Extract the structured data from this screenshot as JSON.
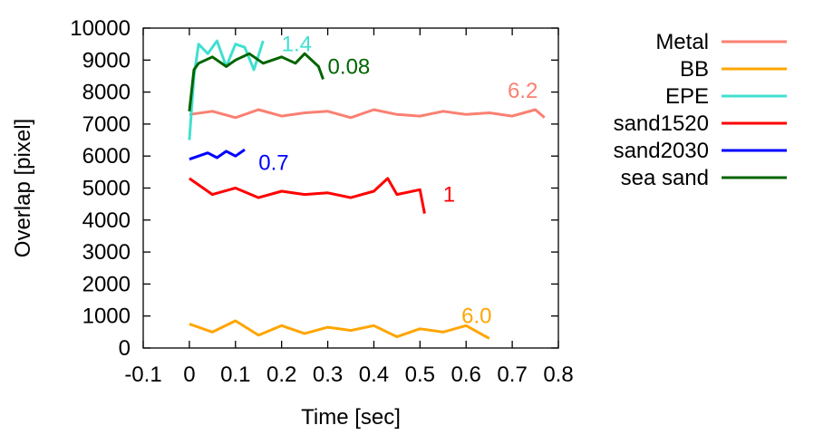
{
  "chart_data": {
    "type": "line",
    "xlabel": "Time [sec]",
    "ylabel": "Overlap [pixel]",
    "xlim": [
      -0.1,
      0.8
    ],
    "ylim": [
      0,
      10000
    ],
    "x_ticks": [
      "-0.1",
      "0",
      "0.1",
      "0.2",
      "0.3",
      "0.4",
      "0.5",
      "0.6",
      "0.7",
      "0.8"
    ],
    "y_ticks": [
      "0",
      "1000",
      "2000",
      "3000",
      "4000",
      "5000",
      "6000",
      "7000",
      "8000",
      "9000",
      "10000"
    ],
    "grid": false,
    "legend_position": "outside-right",
    "series": [
      {
        "name": "Metal",
        "color": "#fa8072",
        "x": [
          0,
          0.05,
          0.1,
          0.15,
          0.2,
          0.25,
          0.3,
          0.35,
          0.4,
          0.45,
          0.5,
          0.55,
          0.6,
          0.65,
          0.7,
          0.75,
          0.77
        ],
        "y": [
          7300,
          7400,
          7200,
          7450,
          7250,
          7350,
          7400,
          7200,
          7450,
          7300,
          7250,
          7400,
          7300,
          7350,
          7250,
          7450,
          7200
        ]
      },
      {
        "name": "BB",
        "color": "#ffa500",
        "x": [
          0,
          0.05,
          0.1,
          0.15,
          0.2,
          0.25,
          0.3,
          0.35,
          0.4,
          0.45,
          0.5,
          0.55,
          0.6,
          0.65
        ],
        "y": [
          750,
          500,
          850,
          400,
          700,
          450,
          650,
          550,
          700,
          350,
          600,
          500,
          700,
          300
        ]
      },
      {
        "name": "EPE",
        "color": "#40e0d0",
        "x": [
          0,
          0.01,
          0.02,
          0.04,
          0.06,
          0.08,
          0.1,
          0.12,
          0.14,
          0.16
        ],
        "y": [
          6500,
          8500,
          9500,
          9200,
          9600,
          8800,
          9500,
          9400,
          8700,
          9600
        ]
      },
      {
        "name": "sand1520",
        "color": "#ff0000",
        "x": [
          0,
          0.05,
          0.1,
          0.15,
          0.2,
          0.25,
          0.3,
          0.35,
          0.4,
          0.43,
          0.45,
          0.5,
          0.51
        ],
        "y": [
          5300,
          4800,
          5000,
          4700,
          4900,
          4800,
          4850,
          4700,
          4900,
          5300,
          4800,
          4950,
          4200
        ]
      },
      {
        "name": "sand2030",
        "color": "#0000ff",
        "x": [
          0,
          0.02,
          0.04,
          0.06,
          0.08,
          0.1,
          0.12
        ],
        "y": [
          5900,
          6000,
          6100,
          5950,
          6150,
          6000,
          6200
        ]
      },
      {
        "name": "sea sand",
        "color": "#006400",
        "x": [
          0,
          0.01,
          0.02,
          0.05,
          0.08,
          0.1,
          0.13,
          0.16,
          0.2,
          0.23,
          0.25,
          0.28,
          0.29
        ],
        "y": [
          7400,
          8700,
          8900,
          9100,
          8800,
          9000,
          9200,
          8900,
          9100,
          8900,
          9200,
          8800,
          8400
        ]
      }
    ],
    "annotations": [
      {
        "text": "6.2",
        "x": 0.69,
        "y": 8050,
        "color": "#fa8072"
      },
      {
        "text": "6.0",
        "x": 0.59,
        "y": 1000,
        "color": "#ffa500"
      },
      {
        "text": "1.4",
        "x": 0.2,
        "y": 9500,
        "color": "#40e0d0"
      },
      {
        "text": "1",
        "x": 0.55,
        "y": 4800,
        "color": "#ff0000"
      },
      {
        "text": "0.7",
        "x": 0.15,
        "y": 5800,
        "color": "#0000ff"
      },
      {
        "text": "0.08",
        "x": 0.3,
        "y": 8800,
        "color": "#006400"
      }
    ]
  }
}
